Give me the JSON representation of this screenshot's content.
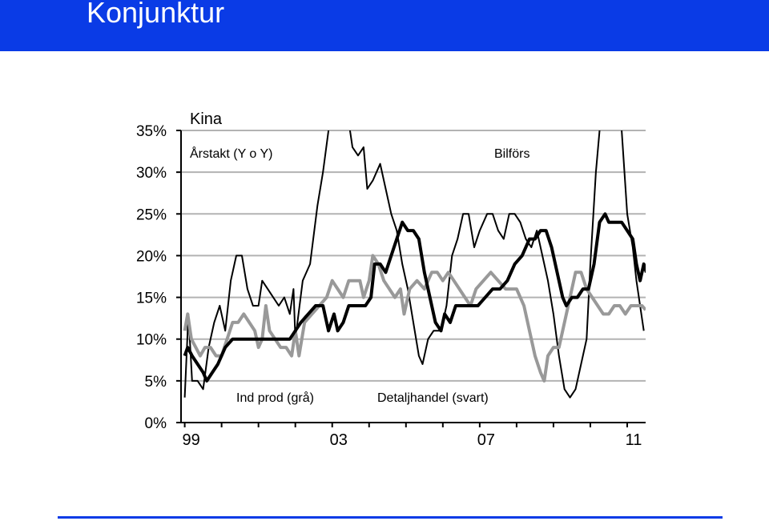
{
  "header": {
    "title": "Konjunktur"
  },
  "colors": {
    "header_bg": "#0a3be6",
    "grid": "#b3b3b3",
    "axis": "#000000"
  },
  "chart_data": {
    "type": "line",
    "title": "Kina",
    "subtitle": "Årstakt (Y o Y)",
    "xlabel": "",
    "ylabel": "",
    "y_tick_labels": [
      "0%",
      "5%",
      "10%",
      "15%",
      "20%",
      "25%",
      "30%",
      "35%"
    ],
    "y_tick_values": [
      0,
      5,
      10,
      15,
      20,
      25,
      30,
      35
    ],
    "x_tick_labels": [
      "99",
      "03",
      "07",
      "11"
    ],
    "x_tick_values": [
      1999,
      2003,
      2007,
      2011
    ],
    "xlim": [
      1998.9,
      2011.5
    ],
    "ylim": [
      0,
      35
    ],
    "grid": "horizontal",
    "annotations": [
      "Bilförs",
      "Ind prod (grå)",
      "Detaljhandel (svart)"
    ],
    "series": [
      {
        "name": "Bilförs",
        "color": "#000000",
        "style": "thin",
        "points": [
          [
            1999.0,
            3
          ],
          [
            1999.1,
            13
          ],
          [
            1999.2,
            5
          ],
          [
            1999.35,
            5
          ],
          [
            1999.5,
            4
          ],
          [
            1999.65,
            9
          ],
          [
            1999.8,
            12
          ],
          [
            1999.95,
            14
          ],
          [
            2000.1,
            11
          ],
          [
            2000.25,
            17
          ],
          [
            2000.4,
            20
          ],
          [
            2000.55,
            20
          ],
          [
            2000.7,
            16
          ],
          [
            2000.85,
            14
          ],
          [
            2001.0,
            14
          ],
          [
            2001.1,
            17
          ],
          [
            2001.25,
            16
          ],
          [
            2001.4,
            15
          ],
          [
            2001.55,
            14
          ],
          [
            2001.7,
            15
          ],
          [
            2001.85,
            13
          ],
          [
            2001.95,
            16
          ],
          [
            2002.0,
            10
          ],
          [
            2002.2,
            17
          ],
          [
            2002.4,
            19
          ],
          [
            2002.6,
            26
          ],
          [
            2002.75,
            30
          ],
          [
            2002.9,
            35
          ],
          [
            2003.2,
            40
          ],
          [
            2003.45,
            36
          ],
          [
            2003.55,
            33
          ],
          [
            2003.7,
            32
          ],
          [
            2003.85,
            33
          ],
          [
            2003.95,
            28
          ],
          [
            2004.1,
            29
          ],
          [
            2004.3,
            31
          ],
          [
            2004.45,
            28
          ],
          [
            2004.6,
            25
          ],
          [
            2004.75,
            23
          ],
          [
            2004.9,
            19
          ],
          [
            2005.05,
            16
          ],
          [
            2005.2,
            12
          ],
          [
            2005.35,
            8
          ],
          [
            2005.45,
            7
          ],
          [
            2005.6,
            10
          ],
          [
            2005.75,
            11
          ],
          [
            2005.95,
            11
          ],
          [
            2006.1,
            14
          ],
          [
            2006.25,
            20
          ],
          [
            2006.4,
            22
          ],
          [
            2006.55,
            25
          ],
          [
            2006.7,
            25
          ],
          [
            2006.85,
            21
          ],
          [
            2007.0,
            23
          ],
          [
            2007.2,
            25
          ],
          [
            2007.35,
            25
          ],
          [
            2007.5,
            23
          ],
          [
            2007.65,
            22
          ],
          [
            2007.8,
            25
          ],
          [
            2007.95,
            25
          ],
          [
            2008.1,
            24
          ],
          [
            2008.25,
            22
          ],
          [
            2008.4,
            21
          ],
          [
            2008.55,
            23
          ],
          [
            2008.7,
            20
          ],
          [
            2008.85,
            17
          ],
          [
            2009.0,
            13
          ],
          [
            2009.15,
            8
          ],
          [
            2009.3,
            4
          ],
          [
            2009.45,
            3
          ],
          [
            2009.6,
            4
          ],
          [
            2009.75,
            7
          ],
          [
            2009.9,
            10
          ],
          [
            2010.0,
            19
          ],
          [
            2010.15,
            30
          ],
          [
            2010.35,
            40
          ],
          [
            2010.7,
            40
          ],
          [
            2010.85,
            35
          ],
          [
            2011.0,
            25
          ],
          [
            2011.15,
            21
          ],
          [
            2011.25,
            17
          ],
          [
            2011.35,
            14
          ],
          [
            2011.45,
            11
          ]
        ]
      },
      {
        "name": "Ind prod (grå)",
        "color": "#999999",
        "style": "thick",
        "points": [
          [
            1999.0,
            11
          ],
          [
            1999.08,
            13
          ],
          [
            1999.18,
            10
          ],
          [
            1999.3,
            9
          ],
          [
            1999.42,
            8
          ],
          [
            1999.55,
            9
          ],
          [
            1999.7,
            9
          ],
          [
            1999.85,
            8
          ],
          [
            2000.0,
            8
          ],
          [
            2000.15,
            10
          ],
          [
            2000.3,
            12
          ],
          [
            2000.45,
            12
          ],
          [
            2000.6,
            13
          ],
          [
            2000.75,
            12
          ],
          [
            2000.9,
            11
          ],
          [
            2001.0,
            9
          ],
          [
            2001.1,
            10
          ],
          [
            2001.2,
            14
          ],
          [
            2001.3,
            11
          ],
          [
            2001.45,
            10
          ],
          [
            2001.6,
            9
          ],
          [
            2001.75,
            9
          ],
          [
            2001.9,
            8
          ],
          [
            2002.0,
            11
          ],
          [
            2002.1,
            8
          ],
          [
            2002.25,
            12
          ],
          [
            2002.45,
            13
          ],
          [
            2002.65,
            14
          ],
          [
            2002.85,
            15
          ],
          [
            2003.0,
            17
          ],
          [
            2003.15,
            16
          ],
          [
            2003.3,
            15
          ],
          [
            2003.45,
            17
          ],
          [
            2003.6,
            17
          ],
          [
            2003.75,
            17
          ],
          [
            2003.85,
            15
          ],
          [
            2004.0,
            17
          ],
          [
            2004.1,
            20
          ],
          [
            2004.25,
            19
          ],
          [
            2004.4,
            17
          ],
          [
            2004.55,
            16
          ],
          [
            2004.7,
            15
          ],
          [
            2004.85,
            16
          ],
          [
            2004.95,
            13
          ],
          [
            2005.1,
            16
          ],
          [
            2005.3,
            17
          ],
          [
            2005.5,
            16
          ],
          [
            2005.7,
            18
          ],
          [
            2005.85,
            18
          ],
          [
            2006.0,
            17
          ],
          [
            2006.15,
            18
          ],
          [
            2006.3,
            17
          ],
          [
            2006.45,
            16
          ],
          [
            2006.6,
            15
          ],
          [
            2006.75,
            14
          ],
          [
            2006.9,
            16
          ],
          [
            2007.1,
            17
          ],
          [
            2007.3,
            18
          ],
          [
            2007.5,
            17
          ],
          [
            2007.7,
            16
          ],
          [
            2007.85,
            16
          ],
          [
            2008.0,
            16
          ],
          [
            2008.2,
            14
          ],
          [
            2008.35,
            11
          ],
          [
            2008.5,
            8
          ],
          [
            2008.65,
            6
          ],
          [
            2008.75,
            5
          ],
          [
            2008.85,
            8
          ],
          [
            2009.0,
            9
          ],
          [
            2009.15,
            9
          ],
          [
            2009.3,
            12
          ],
          [
            2009.45,
            15
          ],
          [
            2009.6,
            18
          ],
          [
            2009.75,
            18
          ],
          [
            2009.9,
            16
          ],
          [
            2010.05,
            15
          ],
          [
            2010.2,
            14
          ],
          [
            2010.35,
            13
          ],
          [
            2010.5,
            13
          ],
          [
            2010.65,
            14
          ],
          [
            2010.8,
            14
          ],
          [
            2010.95,
            13
          ],
          [
            2011.1,
            14
          ],
          [
            2011.25,
            14
          ],
          [
            2011.4,
            14
          ],
          [
            2011.5,
            13.5
          ]
        ]
      },
      {
        "name": "Detaljhandel (svart)",
        "color": "#000000",
        "style": "thick",
        "points": [
          [
            1999.0,
            8
          ],
          [
            1999.08,
            9
          ],
          [
            1999.2,
            8
          ],
          [
            1999.35,
            7
          ],
          [
            1999.5,
            6
          ],
          [
            1999.6,
            5
          ],
          [
            1999.75,
            6
          ],
          [
            1999.9,
            7
          ],
          [
            2000.1,
            9
          ],
          [
            2000.3,
            10
          ],
          [
            2000.5,
            10
          ],
          [
            2000.7,
            10
          ],
          [
            2000.85,
            10
          ],
          [
            2001.0,
            10
          ],
          [
            2001.15,
            10
          ],
          [
            2001.3,
            10
          ],
          [
            2001.5,
            10
          ],
          [
            2001.7,
            10
          ],
          [
            2001.85,
            10
          ],
          [
            2002.0,
            11
          ],
          [
            2002.15,
            12
          ],
          [
            2002.35,
            13
          ],
          [
            2002.55,
            14
          ],
          [
            2002.75,
            14
          ],
          [
            2002.9,
            11
          ],
          [
            2003.05,
            13
          ],
          [
            2003.15,
            11
          ],
          [
            2003.3,
            12
          ],
          [
            2003.45,
            14
          ],
          [
            2003.6,
            14
          ],
          [
            2003.75,
            14
          ],
          [
            2003.9,
            14
          ],
          [
            2004.05,
            15
          ],
          [
            2004.15,
            19
          ],
          [
            2004.3,
            19
          ],
          [
            2004.45,
            18
          ],
          [
            2004.6,
            20
          ],
          [
            2004.75,
            22
          ],
          [
            2004.9,
            24
          ],
          [
            2005.05,
            23
          ],
          [
            2005.2,
            23
          ],
          [
            2005.35,
            22
          ],
          [
            2005.5,
            18
          ],
          [
            2005.65,
            15
          ],
          [
            2005.8,
            12
          ],
          [
            2005.95,
            11
          ],
          [
            2006.05,
            13
          ],
          [
            2006.2,
            12
          ],
          [
            2006.35,
            14
          ],
          [
            2006.55,
            14
          ],
          [
            2006.75,
            14
          ],
          [
            2006.95,
            14
          ],
          [
            2007.15,
            15
          ],
          [
            2007.35,
            16
          ],
          [
            2007.55,
            16
          ],
          [
            2007.75,
            17
          ],
          [
            2007.95,
            19
          ],
          [
            2008.15,
            20
          ],
          [
            2008.35,
            22
          ],
          [
            2008.5,
            22
          ],
          [
            2008.65,
            23
          ],
          [
            2008.8,
            23
          ],
          [
            2008.95,
            21
          ],
          [
            2009.1,
            18
          ],
          [
            2009.25,
            15
          ],
          [
            2009.35,
            14
          ],
          [
            2009.5,
            15
          ],
          [
            2009.65,
            15
          ],
          [
            2009.8,
            16
          ],
          [
            2009.95,
            16
          ],
          [
            2010.1,
            19
          ],
          [
            2010.25,
            24
          ],
          [
            2010.4,
            25
          ],
          [
            2010.5,
            24
          ],
          [
            2010.65,
            24
          ],
          [
            2010.85,
            24
          ],
          [
            2011.0,
            23
          ],
          [
            2011.15,
            22
          ],
          [
            2011.25,
            19
          ],
          [
            2011.35,
            17
          ],
          [
            2011.45,
            19
          ],
          [
            2011.52,
            18
          ]
        ]
      }
    ]
  }
}
